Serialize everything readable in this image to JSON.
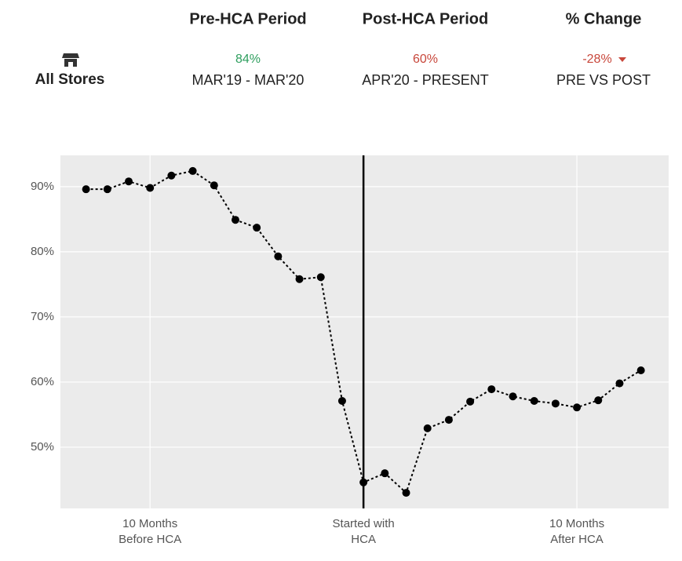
{
  "summary": {
    "store": "All Stores",
    "columns": [
      {
        "title": "Pre-HCA Period",
        "value": "84%",
        "subtitle": "MAR'19 - MAR'20",
        "color": "#2e9e5e"
      },
      {
        "title": "Post-HCA Period",
        "value": "60%",
        "subtitle": "APR'20 - PRESENT",
        "color": "#c8473b"
      },
      {
        "title": "% Change",
        "value": "-28%",
        "subtitle": "PRE VS POST",
        "color": "#c8473b"
      }
    ]
  },
  "chart_data": {
    "type": "line",
    "x": [
      -13,
      -12,
      -11,
      -10,
      -9,
      -8,
      -7,
      -6,
      -5,
      -4,
      -3,
      -2,
      -1,
      0,
      1,
      2,
      3,
      4,
      5,
      6,
      7,
      8,
      9,
      10,
      11,
      12,
      13
    ],
    "series": [
      {
        "color": "#000000",
        "values": [
          89.6,
          89.6,
          90.8,
          89.8,
          91.7,
          92.4,
          90.2,
          84.9,
          83.7,
          79.3,
          75.8,
          76.1,
          57.1,
          44.6,
          46.0,
          43.0,
          52.9,
          54.2,
          57.0,
          58.9,
          57.8,
          57.1,
          56.7,
          56.1,
          57.2,
          59.8,
          61.8
        ]
      }
    ],
    "xlim": [
      -14.2,
      14.3
    ],
    "ylim": [
      40.6,
      94.8
    ],
    "xticks": [
      {
        "value": -10,
        "label": "10 Months\nBefore HCA"
      },
      {
        "value": 0,
        "label": "Started with\nHCA"
      },
      {
        "value": 10,
        "label": "10 Months\nAfter HCA"
      }
    ],
    "yticks": [
      {
        "value": 50,
        "label": "50%"
      },
      {
        "value": 60,
        "label": "60%"
      },
      {
        "value": 70,
        "label": "70%"
      },
      {
        "value": 80,
        "label": "80%"
      },
      {
        "value": 90,
        "label": "90%"
      }
    ],
    "vline": 0,
    "grid": true
  }
}
